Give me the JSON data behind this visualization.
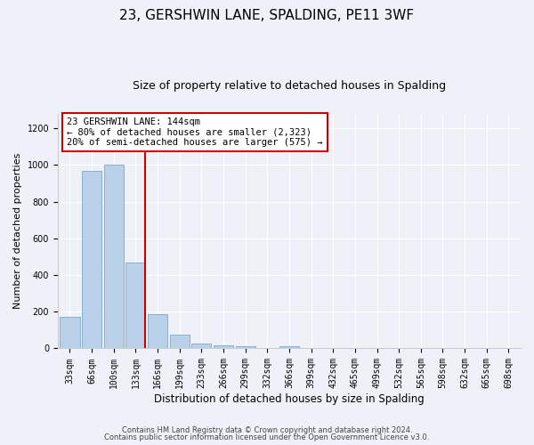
{
  "title": "23, GERSHWIN LANE, SPALDING, PE11 3WF",
  "subtitle": "Size of property relative to detached houses in Spalding",
  "xlabel": "Distribution of detached houses by size in Spalding",
  "ylabel": "Number of detached properties",
  "bin_labels": [
    "33sqm",
    "66sqm",
    "100sqm",
    "133sqm",
    "166sqm",
    "199sqm",
    "233sqm",
    "266sqm",
    "299sqm",
    "332sqm",
    "366sqm",
    "399sqm",
    "432sqm",
    "465sqm",
    "499sqm",
    "532sqm",
    "565sqm",
    "598sqm",
    "632sqm",
    "665sqm",
    "698sqm"
  ],
  "bar_values": [
    170,
    970,
    1000,
    470,
    185,
    75,
    25,
    15,
    10,
    0,
    10,
    0,
    0,
    0,
    0,
    0,
    0,
    0,
    0,
    0,
    0
  ],
  "bar_color": "#b8d0e8",
  "bar_edge_color": "#8ab0d0",
  "marker_xpos_after_bin": 3,
  "marker_color": "#cc0000",
  "annotation_title": "23 GERSHWIN LANE: 144sqm",
  "annotation_line1": "← 80% of detached houses are smaller (2,323)",
  "annotation_line2": "20% of semi-detached houses are larger (575) →",
  "annotation_box_color": "#cc0000",
  "ylim": [
    0,
    1280
  ],
  "yticks": [
    0,
    200,
    400,
    600,
    800,
    1000,
    1200
  ],
  "footer1": "Contains HM Land Registry data © Crown copyright and database right 2024.",
  "footer2": "Contains public sector information licensed under the Open Government Licence v3.0.",
  "bg_color": "#eef2f8",
  "title_fontsize": 11,
  "subtitle_fontsize": 9,
  "ylabel_fontsize": 8,
  "xlabel_fontsize": 8.5,
  "tick_fontsize": 7,
  "footer_fontsize": 6
}
